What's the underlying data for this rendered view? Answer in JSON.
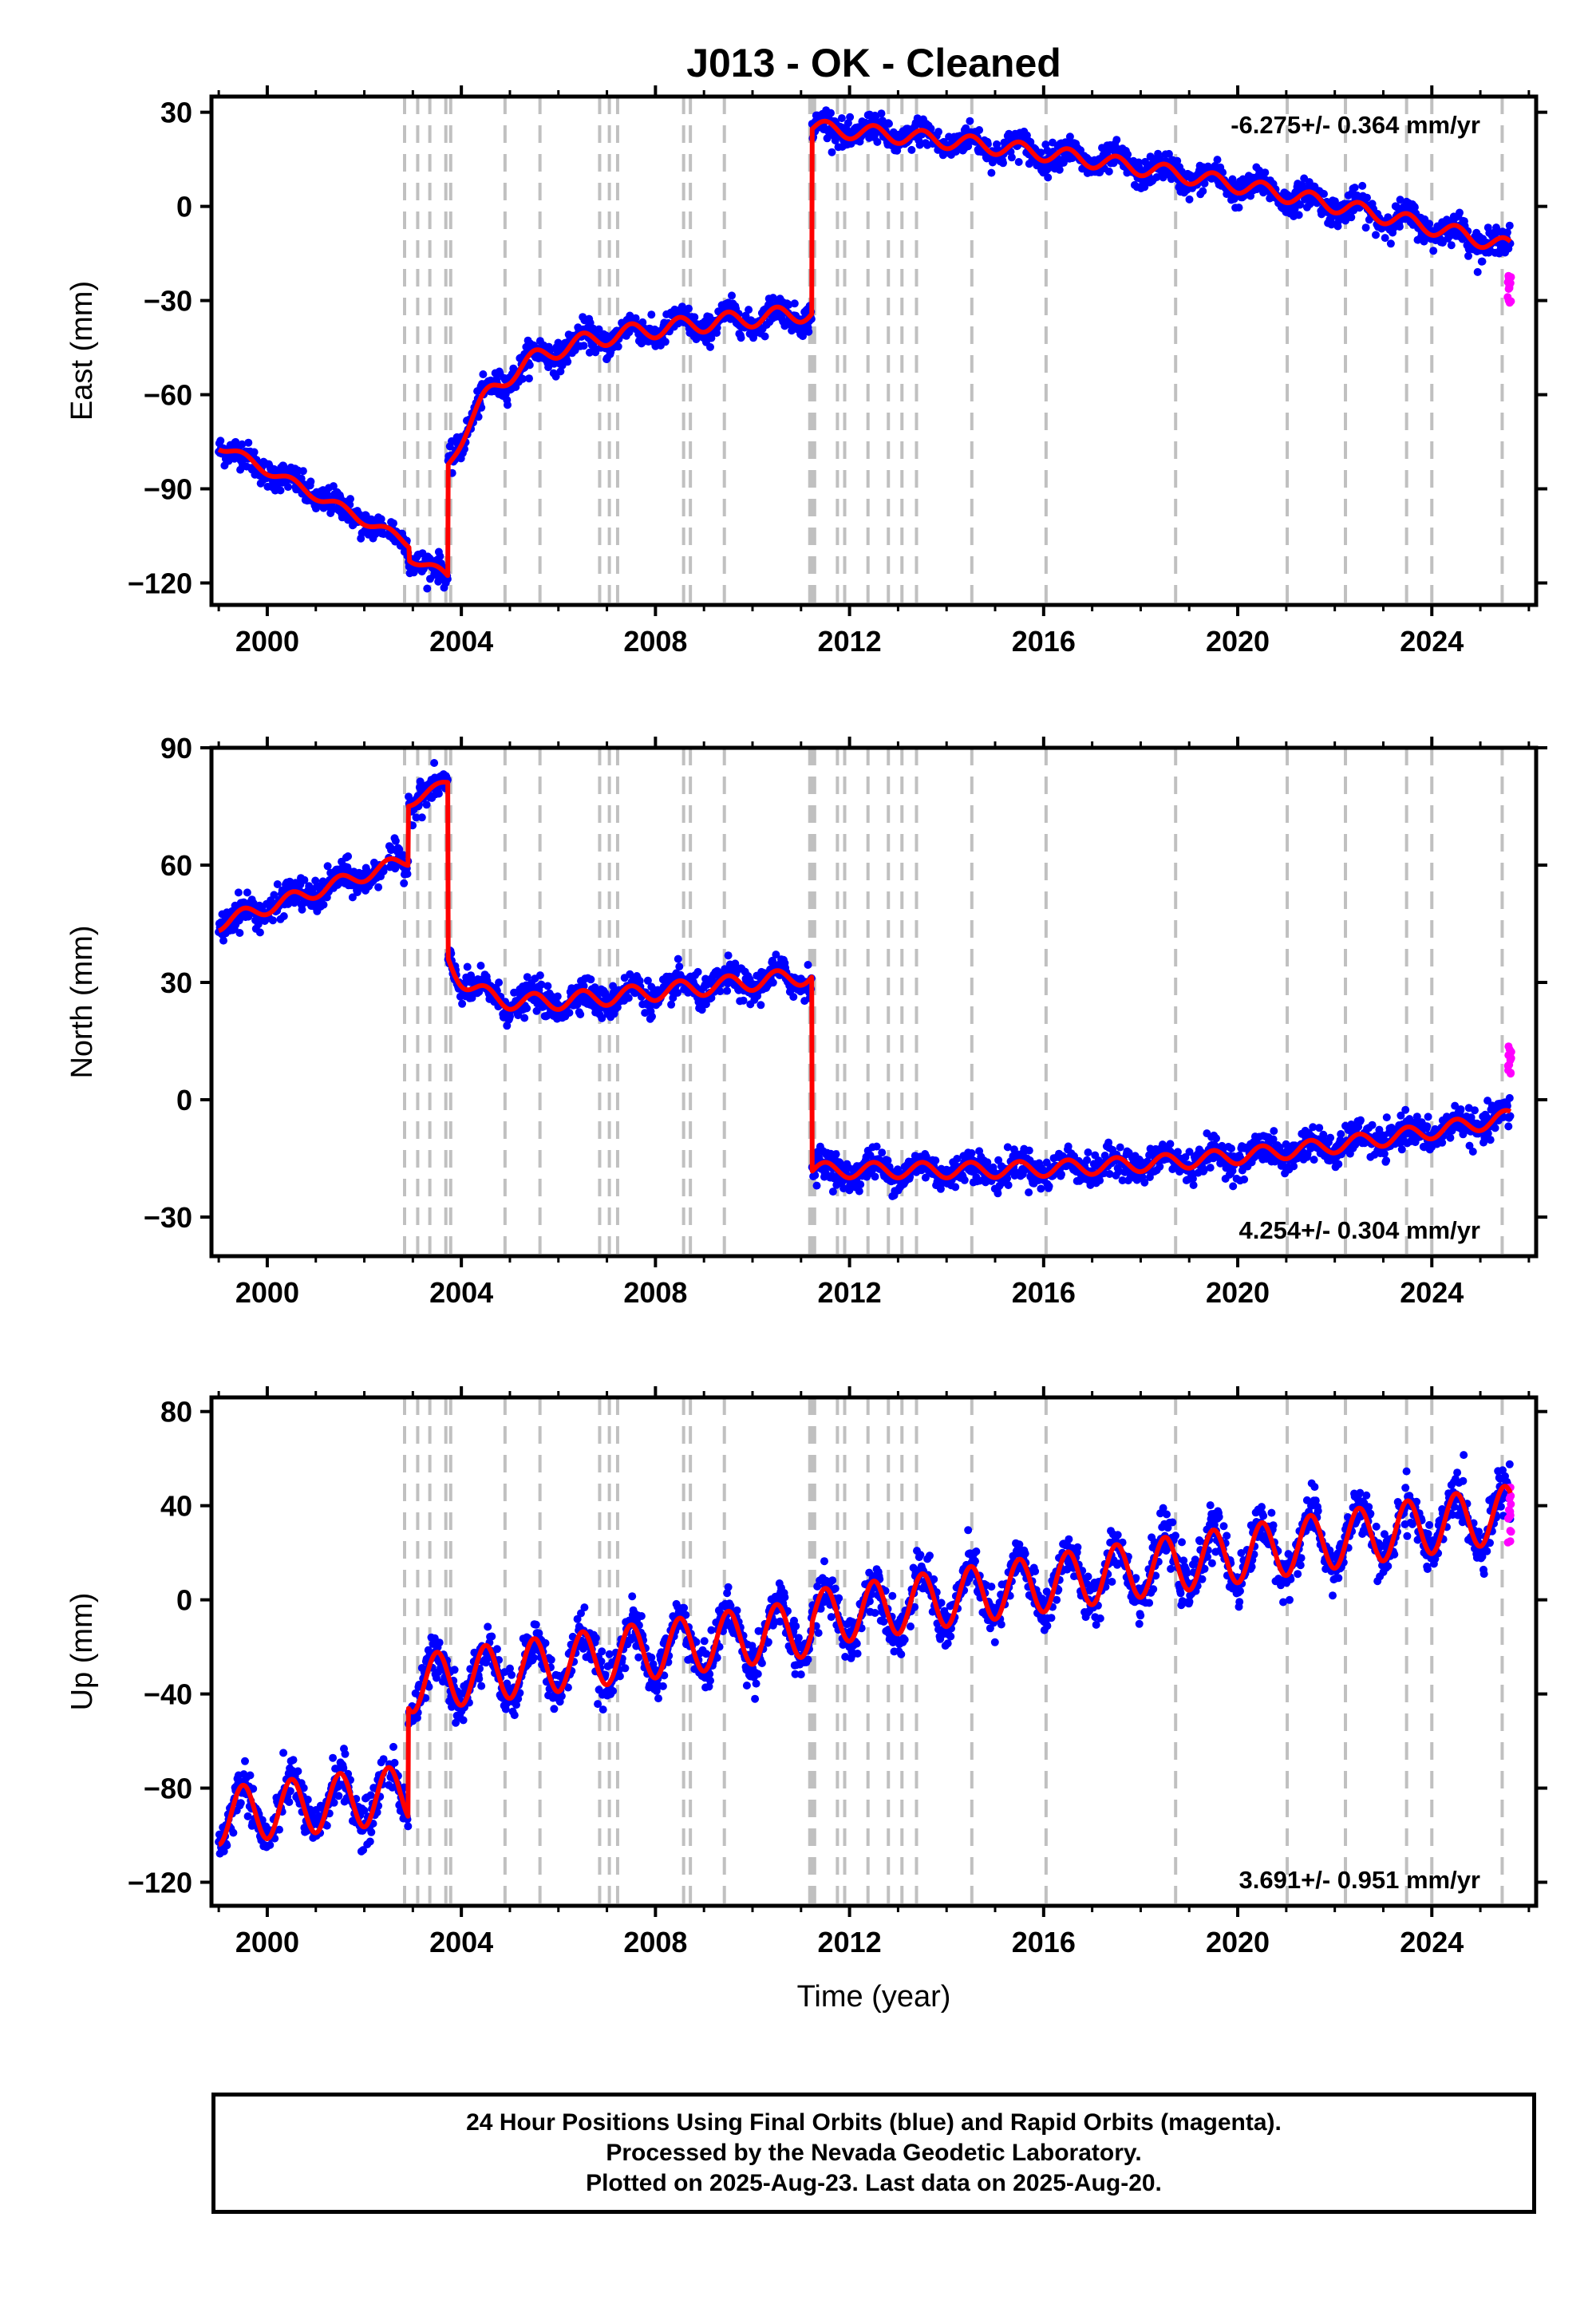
{
  "title": "J013  - OK - Cleaned",
  "xlabel": "Time (year)",
  "colors": {
    "final": "#0000ff",
    "rapid": "#ff00ff",
    "model": "#ff0000",
    "event": "#c0c0c0"
  },
  "chart_data": [
    {
      "id": "east",
      "type": "scatter",
      "ylabel": "East (mm)",
      "rate_label": "-6.275+/- 0.364 mm/yr",
      "xlim": [
        1998.85,
        2026.15
      ],
      "ylim": [
        -127,
        35
      ],
      "yticks": [
        -120,
        -90,
        -60,
        -30,
        0,
        30
      ],
      "xticks": [
        2000,
        2004,
        2008,
        2012,
        2016,
        2020,
        2024
      ],
      "events": [
        2002.83,
        2003.1,
        2003.35,
        2003.68,
        2003.78,
        2004.9,
        2005.62,
        2006.85,
        2007.05,
        2007.22,
        2008.58,
        2008.72,
        2009.42,
        2011.18,
        2011.22,
        2011.28,
        2011.75,
        2011.9,
        2012.38,
        2012.8,
        2013.08,
        2013.38,
        2014.52,
        2016.05,
        2018.72,
        2021.02,
        2022.22,
        2023.48,
        2024.0,
        2025.45
      ],
      "model": {
        "segments": [
          {
            "t0": 1999.0,
            "t1": 2003.72,
            "a": -76,
            "b": -8.0,
            "amp": 1.5,
            "jump": -4.2,
            "t_jump": 2002.92
          },
          {
            "t0": 2003.72,
            "t1": 2011.22,
            "a": -45,
            "b": 1.5,
            "amp": 2.8,
            "log_amp": -38,
            "log_tau": 0.1,
            "log_end": -3,
            "t_log": 2003.72
          },
          {
            "t0": 2011.22,
            "t1": 2025.62,
            "a": 25,
            "b": -1.2,
            "amp": 2.5,
            "accel": -0.1
          }
        ]
      },
      "rapid": {
        "t0": 2025.56,
        "t1": 2025.64,
        "ymin": -31,
        "ymax": -22
      },
      "scatter": 4.0
    },
    {
      "id": "north",
      "type": "scatter",
      "ylabel": "North (mm)",
      "rate_label": "4.254+/- 0.304 mm/yr",
      "xlim": [
        1998.85,
        2026.15
      ],
      "ylim": [
        -40,
        90
      ],
      "yticks": [
        -30,
        0,
        30,
        60,
        90
      ],
      "xticks": [
        2000,
        2004,
        2008,
        2012,
        2016,
        2020,
        2024
      ],
      "events": [
        2002.83,
        2003.1,
        2003.35,
        2003.68,
        2003.78,
        2004.9,
        2005.62,
        2006.85,
        2007.05,
        2007.22,
        2008.58,
        2008.72,
        2009.42,
        2011.18,
        2011.22,
        2011.28,
        2011.75,
        2011.9,
        2012.38,
        2012.8,
        2013.08,
        2013.38,
        2014.52,
        2016.05,
        2018.72,
        2021.02,
        2022.22,
        2023.48,
        2024.0,
        2025.45
      ],
      "model": {
        "segments": [
          {
            "t0": 1999.0,
            "t1": 2002.9,
            "a": 45,
            "b": 4.2,
            "amp": 1.8
          },
          {
            "t0": 2002.9,
            "t1": 2003.72,
            "a": 76,
            "b": 6.0,
            "amp": 1.2
          },
          {
            "t0": 2003.72,
            "t1": 2011.22,
            "a": 22,
            "b": 1.3,
            "amp": 2.2,
            "log_amp": 14,
            "log_tau": 0.06,
            "log_end": 0,
            "t_log": 2003.72
          },
          {
            "t0": 2011.22,
            "t1": 2025.62,
            "a": -18,
            "b": 0.0,
            "amp": 2.0,
            "accel": 0.1,
            "t_acc": 2014.0
          }
        ]
      },
      "rapid": {
        "t0": 2025.56,
        "t1": 2025.64,
        "ymin": 6,
        "ymax": 14
      },
      "scatter": 3.6
    },
    {
      "id": "up",
      "type": "scatter",
      "ylabel": "Up (mm)",
      "rate_label": "3.691+/- 0.951 mm/yr",
      "xlim": [
        1998.85,
        2026.15
      ],
      "ylim": [
        -130,
        86
      ],
      "yticks": [
        -120,
        -80,
        -40,
        0,
        40,
        80
      ],
      "xticks": [
        2000,
        2004,
        2008,
        2012,
        2016,
        2020,
        2024
      ],
      "events": [
        2002.83,
        2003.1,
        2003.35,
        2003.68,
        2003.78,
        2004.9,
        2005.62,
        2006.85,
        2007.05,
        2007.22,
        2008.58,
        2008.72,
        2009.42,
        2011.18,
        2011.22,
        2011.28,
        2011.75,
        2011.9,
        2012.38,
        2012.8,
        2013.08,
        2013.38,
        2014.52,
        2016.05,
        2018.72,
        2021.02,
        2022.22,
        2023.48,
        2024.0,
        2025.45
      ],
      "model": {
        "segments": [
          {
            "t0": 1999.0,
            "t1": 2002.9,
            "a": -92,
            "b": 2.5,
            "amp": 12
          },
          {
            "t0": 2002.9,
            "t1": 2011.22,
            "a": -36,
            "b": 2.9,
            "amp": 12
          },
          {
            "t0": 2011.22,
            "t1": 2025.62,
            "a": -8,
            "b": 3.1,
            "amp": 12
          }
        ]
      },
      "rapid": {
        "t0": 2025.56,
        "t1": 2025.64,
        "ymin": 20,
        "ymax": 48
      },
      "scatter": 9.0
    }
  ],
  "caption": {
    "line1": "24 Hour Positions Using Final Orbits (blue) and Rapid Orbits (magenta).",
    "line2": "Processed by the Nevada Geodetic Laboratory.",
    "line3": "Plotted on 2025-Aug-23. Last data on 2025-Aug-20."
  }
}
